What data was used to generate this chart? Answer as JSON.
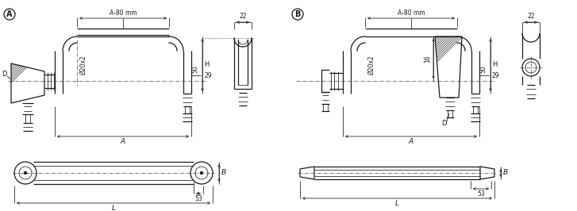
{
  "bg_color": "#ffffff",
  "line_color": "#1a1a1a",
  "dim_color": "#1a1a1a",
  "center_color": "#555555",
  "hatch_color": "#1a1a1a",
  "lw_main": 0.9,
  "lw_thin": 0.55,
  "lw_dim": 0.55,
  "lw_hatch": 0.45,
  "dim_A80": "A-80 mm",
  "dim_22": "22",
  "dim_50": "50",
  "dim_H": "H",
  "dim_29": "29",
  "dim_A": "A",
  "dim_B": "B",
  "dim_53": "53",
  "dim_L": "L",
  "dim_D": "D",
  "dim_dia": "Ø20x2",
  "dim_16": "16",
  "label_A": "A",
  "label_B": "B"
}
